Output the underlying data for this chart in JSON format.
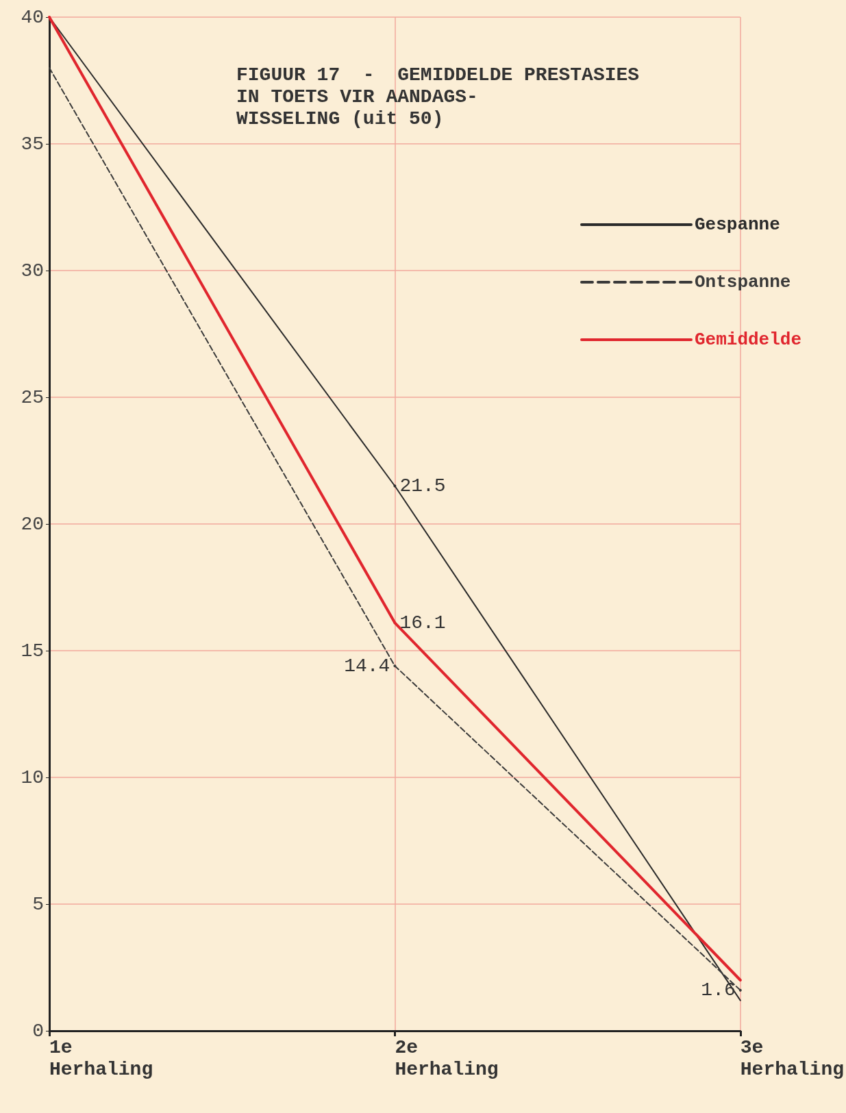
{
  "chart_data": {
    "type": "line",
    "title": "FIGUUR 17  -  GEMIDDELDE PRESTASIES\nIN TOETS VIR AANDAGS-\nWISSELING (uit 50)",
    "categories": [
      "1e\nHerhaling",
      "2e\nHerhaling",
      "3e\nHerhaling"
    ],
    "series": [
      {
        "name": "Gespanne",
        "color": "#2b2b2b",
        "line_style": "solid",
        "values": [
          40,
          21.5,
          1.2
        ],
        "value_labels": [
          null,
          "21.5",
          null
        ]
      },
      {
        "name": "Ontspanne",
        "color": "#3a3a3a",
        "line_style": "dashed",
        "values": [
          38,
          14.4,
          1.6
        ],
        "value_labels": [
          null,
          "14.4",
          "1.6"
        ]
      },
      {
        "name": "Gemiddelde",
        "color": "#e0262e",
        "line_style": "solid",
        "values": [
          40,
          16.1,
          2.0
        ],
        "value_labels": [
          null,
          "16.1",
          null
        ]
      }
    ],
    "ylim": [
      0,
      40
    ],
    "yticks": [
      0,
      5,
      10,
      15,
      20,
      25,
      30,
      35,
      40
    ],
    "grid": true,
    "legend": "top right",
    "marker": "none"
  }
}
